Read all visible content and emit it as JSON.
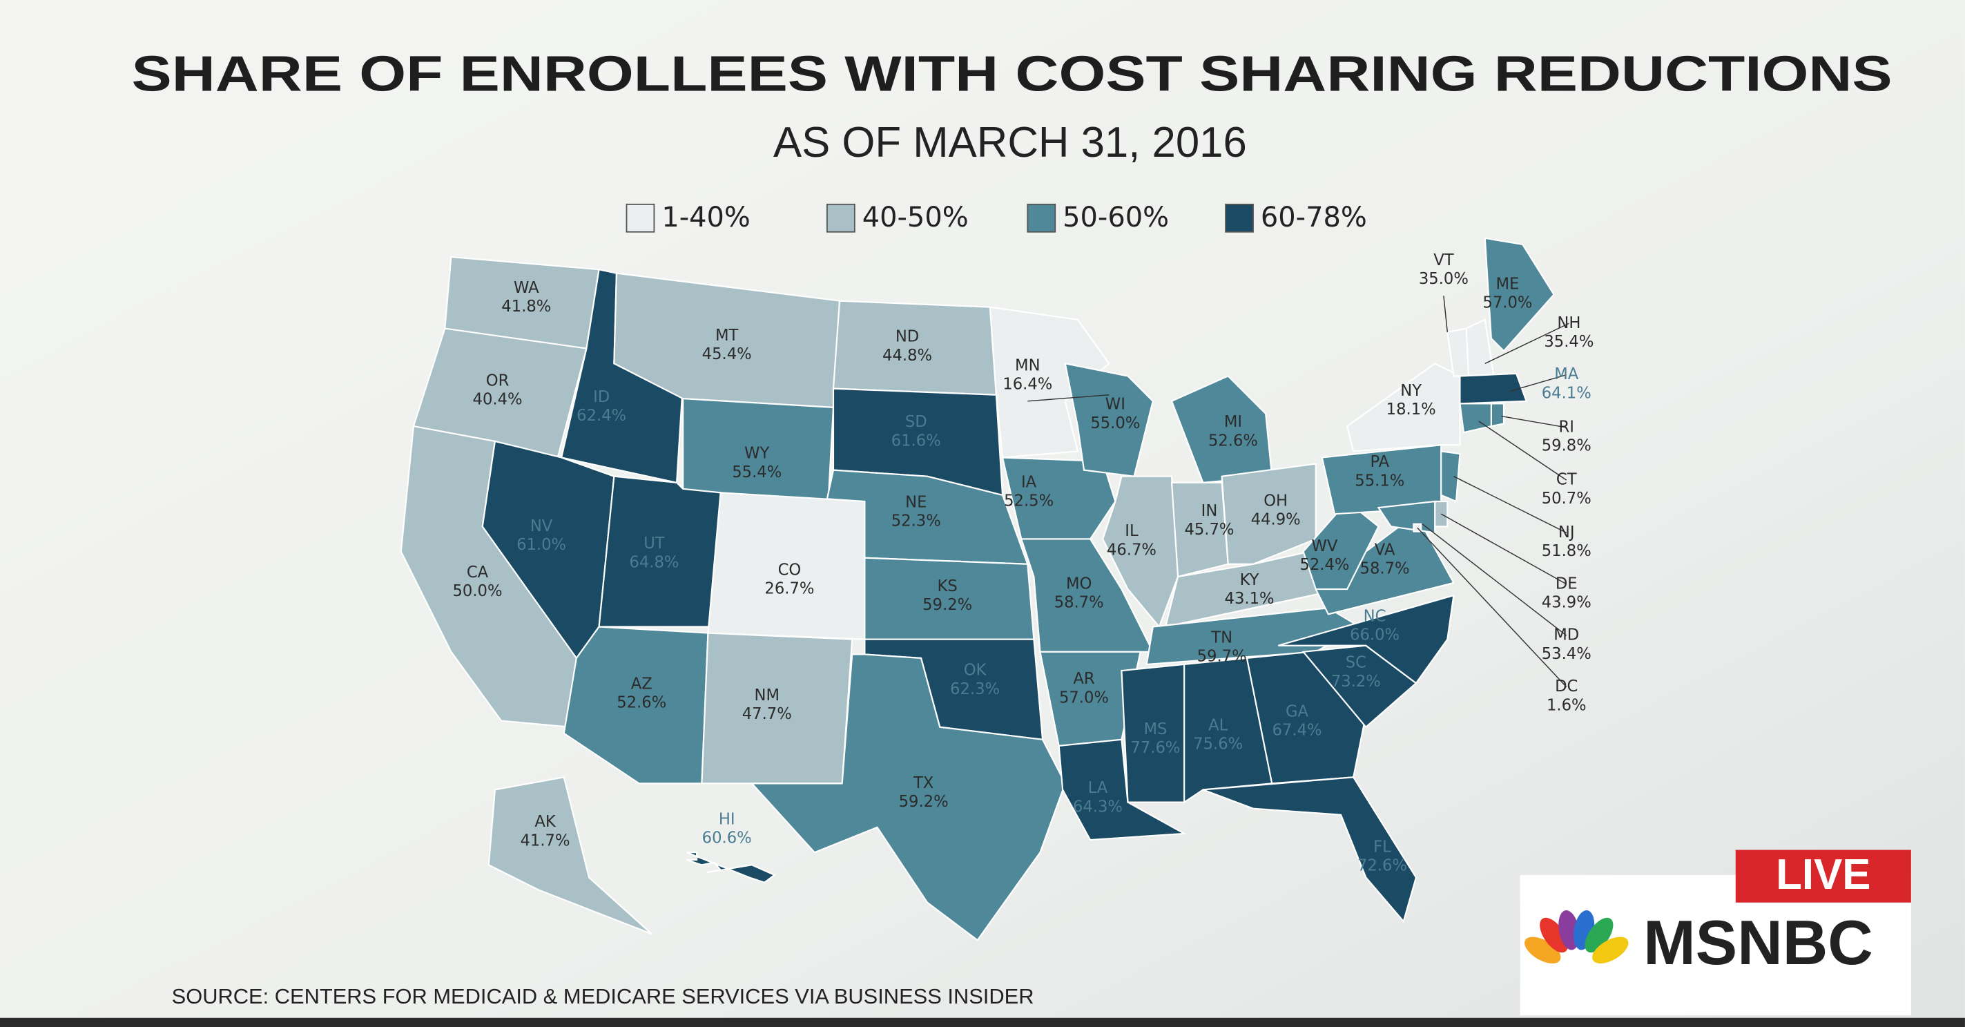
{
  "header": {
    "title": "SHARE OF ENROLLEES WITH COST SHARING REDUCTIONS",
    "subtitle": "AS OF MARCH 31, 2016"
  },
  "legend": [
    {
      "label": "1-40%",
      "color": "#eceff0"
    },
    {
      "label": "40-50%",
      "color": "#a9c0c6"
    },
    {
      "label": "50-60%",
      "color": "#4f8899"
    },
    {
      "label": "60-78%",
      "color": "#1b4b64"
    }
  ],
  "states": [
    {
      "abbr": "WA",
      "value": 41.8,
      "label": "41.8%",
      "color": "#a9c0c6"
    },
    {
      "abbr": "OR",
      "value": 40.4,
      "label": "40.4%",
      "color": "#a9c0c6"
    },
    {
      "abbr": "CA",
      "value": 50.0,
      "label": "50.0%",
      "color": "#a9c0c6"
    },
    {
      "abbr": "ID",
      "value": 62.4,
      "label": "62.4%",
      "color": "#1b4b64"
    },
    {
      "abbr": "NV",
      "value": 61.0,
      "label": "61.0%",
      "color": "#1b4b64"
    },
    {
      "abbr": "MT",
      "value": 45.4,
      "label": "45.4%",
      "color": "#a9c0c6"
    },
    {
      "abbr": "WY",
      "value": 55.4,
      "label": "55.4%",
      "color": "#4f8899"
    },
    {
      "abbr": "UT",
      "value": 64.8,
      "label": "64.8%",
      "color": "#1b4b64"
    },
    {
      "abbr": "AZ",
      "value": 52.6,
      "label": "52.6%",
      "color": "#4f8899"
    },
    {
      "abbr": "CO",
      "value": 26.7,
      "label": "26.7%",
      "color": "#eceff0"
    },
    {
      "abbr": "NM",
      "value": 47.7,
      "label": "47.7%",
      "color": "#a9c0c6"
    },
    {
      "abbr": "ND",
      "value": 44.8,
      "label": "44.8%",
      "color": "#a9c0c6"
    },
    {
      "abbr": "SD",
      "value": 61.6,
      "label": "61.6%",
      "color": "#1b4b64"
    },
    {
      "abbr": "NE",
      "value": 52.3,
      "label": "52.3%",
      "color": "#4f8899"
    },
    {
      "abbr": "KS",
      "value": 59.2,
      "label": "59.2%",
      "color": "#4f8899"
    },
    {
      "abbr": "OK",
      "value": 62.3,
      "label": "62.3%",
      "color": "#1b4b64"
    },
    {
      "abbr": "TX",
      "value": 59.2,
      "label": "59.2%",
      "color": "#4f8899"
    },
    {
      "abbr": "MN",
      "value": 16.4,
      "label": "16.4%",
      "color": "#eceff0"
    },
    {
      "abbr": "IA",
      "value": 52.5,
      "label": "52.5%",
      "color": "#4f8899"
    },
    {
      "abbr": "MO",
      "value": 58.7,
      "label": "58.7%",
      "color": "#4f8899"
    },
    {
      "abbr": "AR",
      "value": 57.0,
      "label": "57.0%",
      "color": "#4f8899"
    },
    {
      "abbr": "LA",
      "value": 64.3,
      "label": "64.3%",
      "color": "#1b4b64"
    },
    {
      "abbr": "WI",
      "value": 55.0,
      "label": "55.0%",
      "color": "#4f8899"
    },
    {
      "abbr": "IL",
      "value": 46.7,
      "label": "46.7%",
      "color": "#a9c0c6"
    },
    {
      "abbr": "MI",
      "value": 52.6,
      "label": "52.6%",
      "color": "#4f8899"
    },
    {
      "abbr": "IN",
      "value": 45.7,
      "label": "45.7%",
      "color": "#a9c0c6"
    },
    {
      "abbr": "OH",
      "value": 44.9,
      "label": "44.9%",
      "color": "#a9c0c6"
    },
    {
      "abbr": "KY",
      "value": 43.1,
      "label": "43.1%",
      "color": "#a9c0c6"
    },
    {
      "abbr": "TN",
      "value": 59.7,
      "label": "59.7%",
      "color": "#4f8899"
    },
    {
      "abbr": "MS",
      "value": 77.6,
      "label": "77.6%",
      "color": "#1b4b64"
    },
    {
      "abbr": "AL",
      "value": 75.6,
      "label": "75.6%",
      "color": "#1b4b64"
    },
    {
      "abbr": "GA",
      "value": 67.4,
      "label": "67.4%",
      "color": "#1b4b64"
    },
    {
      "abbr": "FL",
      "value": 72.6,
      "label": "72.6%",
      "color": "#1b4b64"
    },
    {
      "abbr": "SC",
      "value": 73.2,
      "label": "73.2%",
      "color": "#1b4b64"
    },
    {
      "abbr": "NC",
      "value": 66.0,
      "label": "66.0%",
      "color": "#1b4b64"
    },
    {
      "abbr": "VA",
      "value": 58.7,
      "label": "58.7%",
      "color": "#4f8899"
    },
    {
      "abbr": "WV",
      "value": 52.4,
      "label": "52.4%",
      "color": "#4f8899"
    },
    {
      "abbr": "PA",
      "value": 55.1,
      "label": "55.1%",
      "color": "#4f8899"
    },
    {
      "abbr": "NY",
      "value": 18.1,
      "label": "18.1%",
      "color": "#eceff0"
    },
    {
      "abbr": "VT",
      "value": 35.0,
      "label": "35.0%",
      "color": "#eceff0"
    },
    {
      "abbr": "NH",
      "value": 35.4,
      "label": "35.4%",
      "color": "#eceff0"
    },
    {
      "abbr": "ME",
      "value": 57.0,
      "label": "57.0%",
      "color": "#4f8899"
    },
    {
      "abbr": "MA",
      "value": 64.1,
      "label": "64.1%",
      "color": "#1b4b64"
    },
    {
      "abbr": "RI",
      "value": 59.8,
      "label": "59.8%",
      "color": "#4f8899"
    },
    {
      "abbr": "CT",
      "value": 50.7,
      "label": "50.7%",
      "color": "#4f8899"
    },
    {
      "abbr": "NJ",
      "value": 51.8,
      "label": "51.8%",
      "color": "#4f8899"
    },
    {
      "abbr": "DE",
      "value": 43.9,
      "label": "43.9%",
      "color": "#a9c0c6"
    },
    {
      "abbr": "MD",
      "value": 53.4,
      "label": "53.4%",
      "color": "#4f8899"
    },
    {
      "abbr": "DC",
      "value": 1.6,
      "label": "1.6%",
      "color": "#eceff0"
    },
    {
      "abbr": "AK",
      "value": 41.7,
      "label": "41.7%",
      "color": "#a9c0c6"
    },
    {
      "abbr": "HI",
      "value": 60.6,
      "label": "60.6%",
      "color": "#1b4b64"
    }
  ],
  "source": "SOURCE: CENTERS FOR MEDICAID & MEDICARE SERVICES VIA BUSINESS INSIDER",
  "badge": {
    "live": "LIVE",
    "network": "MSNBC"
  }
}
